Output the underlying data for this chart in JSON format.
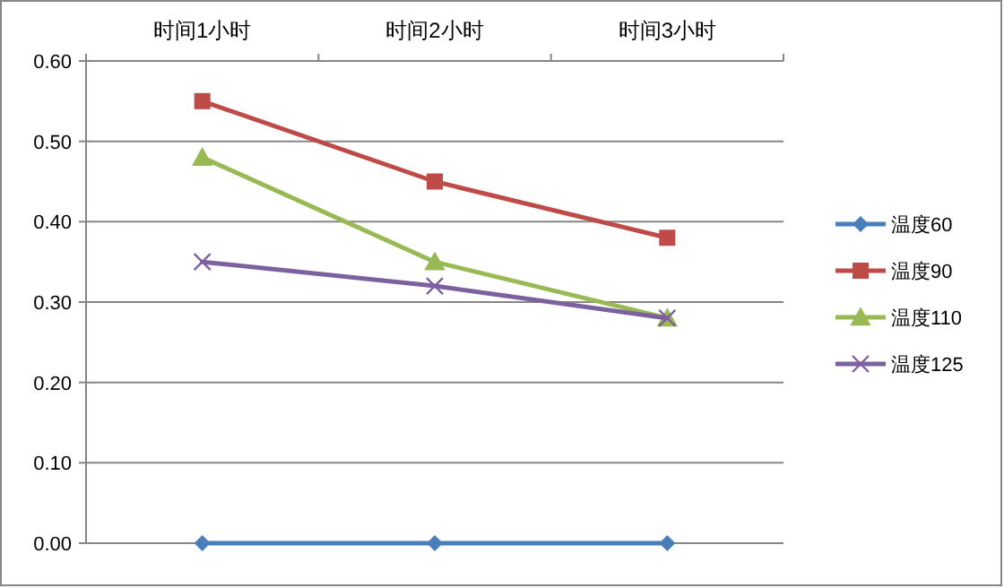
{
  "chart_data": {
    "type": "line",
    "categories": [
      "时间1小时",
      "时间2小时",
      "时间3小时"
    ],
    "series": [
      {
        "name": "温度60",
        "color": "#4a7ebb",
        "marker": "diamond",
        "values": [
          0,
          0,
          0
        ]
      },
      {
        "name": "温度90",
        "color": "#be4b48",
        "marker": "square",
        "values": [
          0.55,
          0.45,
          0.38
        ]
      },
      {
        "name": "温度110",
        "color": "#98b954",
        "marker": "triangle",
        "values": [
          0.48,
          0.35,
          0.28
        ]
      },
      {
        "name": "温度125",
        "color": "#7d60a0",
        "marker": "cross",
        "values": [
          0.35,
          0.32,
          0.28
        ]
      }
    ],
    "ylim": [
      0,
      0.6
    ],
    "yticks": [
      {
        "value": 0,
        "label": "0.00"
      },
      {
        "value": 0.1,
        "label": "0.10"
      },
      {
        "value": 0.2,
        "label": "0.20"
      },
      {
        "value": 0.3,
        "label": "0.30"
      },
      {
        "value": 0.4,
        "label": "0.40"
      },
      {
        "value": 0.5,
        "label": "0.50"
      },
      {
        "value": 0.6,
        "label": "0.60"
      }
    ],
    "grid": "y",
    "legend": "right",
    "line_style": "solid"
  }
}
